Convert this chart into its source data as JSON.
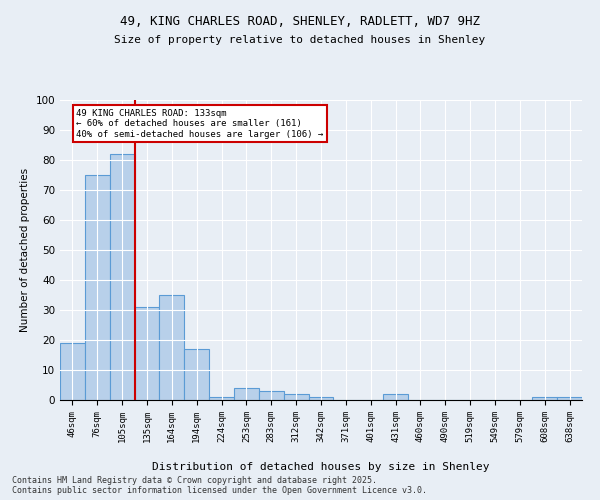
{
  "title_line1": "49, KING CHARLES ROAD, SHENLEY, RADLETT, WD7 9HZ",
  "title_line2": "Size of property relative to detached houses in Shenley",
  "xlabel": "Distribution of detached houses by size in Shenley",
  "ylabel": "Number of detached properties",
  "categories": [
    "46sqm",
    "76sqm",
    "105sqm",
    "135sqm",
    "164sqm",
    "194sqm",
    "224sqm",
    "253sqm",
    "283sqm",
    "312sqm",
    "342sqm",
    "371sqm",
    "401sqm",
    "431sqm",
    "460sqm",
    "490sqm",
    "519sqm",
    "549sqm",
    "579sqm",
    "608sqm",
    "638sqm"
  ],
  "values": [
    19,
    75,
    82,
    31,
    35,
    17,
    1,
    4,
    3,
    2,
    1,
    0,
    0,
    2,
    0,
    0,
    0,
    0,
    0,
    1,
    1
  ],
  "bar_color": "#b8d0ea",
  "bar_edge_color": "#5b9bd5",
  "background_color": "#e8eef5",
  "vline_x": 2.5,
  "vline_color": "#cc0000",
  "annotation_box_text": "49 KING CHARLES ROAD: 133sqm\n← 60% of detached houses are smaller (161)\n40% of semi-detached houses are larger (106) →",
  "annotation_box_color": "#cc0000",
  "annotation_box_bg": "#ffffff",
  "ylim": [
    0,
    100
  ],
  "yticks": [
    0,
    10,
    20,
    30,
    40,
    50,
    60,
    70,
    80,
    90,
    100
  ],
  "footer_line1": "Contains HM Land Registry data © Crown copyright and database right 2025.",
  "footer_line2": "Contains public sector information licensed under the Open Government Licence v3.0."
}
